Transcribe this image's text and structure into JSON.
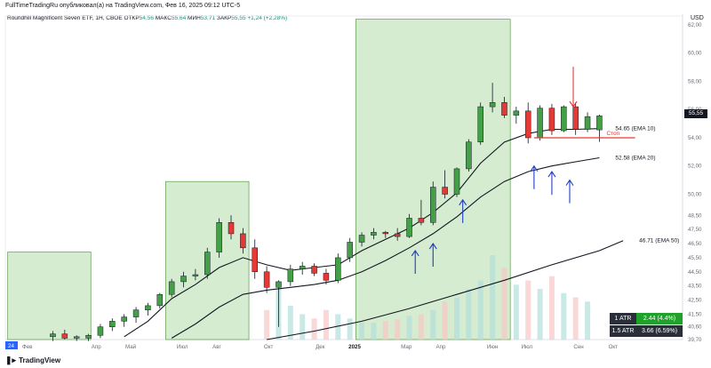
{
  "header": {
    "text": "FullTimeTradingRu опубликовал(а) на TradingView.com, Фев 16, 2025 09:12 UTC-5"
  },
  "symbol_line": {
    "name": "Roundhill Magnificent Seven ETF, 1Н, CBOE",
    "open_label": "ОТКР",
    "open": "54,56",
    "high_label": "МАКС",
    "high": "55,64",
    "low_label": "МИН",
    "low": "53,71",
    "close_label": "ЗАКР",
    "close": "55,55",
    "change": "+1,24 (+2,28%)"
  },
  "currency": "USD",
  "last_price": "55,55",
  "atr": [
    {
      "label": "1 ATR",
      "value": "2.44 (4.4%)",
      "color": "#1fa12b"
    },
    {
      "label": "1.5 ATR",
      "value": "3.66 (6.59%)",
      "color": "#2a2e39"
    }
  ],
  "footer": {
    "brand": "TradingView"
  },
  "colors": {
    "up": "#43a047",
    "down": "#e53935",
    "zone": "#c8e6c0",
    "zone_border": "#5b9b4a",
    "arrow_blue": "#1f3fbf",
    "arrow_red": "#e53935",
    "stop_line": "#e53935"
  },
  "chart_data": {
    "type": "candlestick",
    "price_axis": {
      "min": 39.7,
      "max": 62.0,
      "ticks": [
        "62,00",
        "60,00",
        "58,00",
        "56,00",
        "54,00",
        "52,00",
        "50,00",
        "48,50",
        "47,50",
        "46,50",
        "45,50",
        "44,50",
        "43,50",
        "42,50",
        "41,50",
        "40,60",
        "39,70"
      ],
      "tick_values": [
        62.0,
        60.0,
        58.0,
        56.0,
        54.0,
        52.0,
        50.0,
        48.5,
        47.5,
        46.5,
        45.5,
        44.5,
        43.5,
        42.5,
        41.5,
        40.6,
        39.7
      ]
    },
    "time_axis": {
      "ticks": [
        "24",
        "Фев",
        "Апр",
        "Май",
        "Июл",
        "Авг",
        "Окт",
        "Дек",
        "2025",
        "Мар",
        "Апр",
        "Июн",
        "Июл",
        "Сен",
        "Окт"
      ],
      "tick_pos": [
        0,
        1,
        5,
        7,
        10,
        12,
        15,
        18,
        20,
        23,
        25,
        28,
        30,
        33,
        35
      ]
    },
    "candles": [
      {
        "t": 4,
        "o": 39.9,
        "h": 40.3,
        "l": 39.6,
        "c": 40.1
      },
      {
        "t": 5,
        "o": 40.1,
        "h": 40.4,
        "l": 39.7,
        "c": 39.8
      },
      {
        "t": 6,
        "o": 39.8,
        "h": 40.0,
        "l": 39.6,
        "c": 39.9
      },
      {
        "t": 7,
        "o": 39.8,
        "h": 40.1,
        "l": 39.6,
        "c": 40.0
      },
      {
        "t": 8,
        "o": 40.0,
        "h": 40.8,
        "l": 39.8,
        "c": 40.6
      },
      {
        "t": 9,
        "o": 40.6,
        "h": 41.2,
        "l": 40.3,
        "c": 41.0
      },
      {
        "t": 10,
        "o": 41.0,
        "h": 41.5,
        "l": 40.6,
        "c": 41.3
      },
      {
        "t": 11,
        "o": 41.3,
        "h": 42.0,
        "l": 40.9,
        "c": 41.8
      },
      {
        "t": 12,
        "o": 41.8,
        "h": 42.3,
        "l": 41.4,
        "c": 42.1
      },
      {
        "t": 13,
        "o": 42.1,
        "h": 43.0,
        "l": 41.9,
        "c": 42.9
      },
      {
        "t": 14,
        "o": 42.9,
        "h": 44.0,
        "l": 42.7,
        "c": 43.8
      },
      {
        "t": 15,
        "o": 43.8,
        "h": 44.5,
        "l": 43.4,
        "c": 44.2
      },
      {
        "t": 16,
        "o": 44.2,
        "h": 44.7,
        "l": 43.9,
        "c": 44.3
      },
      {
        "t": 17,
        "o": 44.3,
        "h": 46.2,
        "l": 44.0,
        "c": 45.9
      },
      {
        "t": 18,
        "o": 45.9,
        "h": 48.3,
        "l": 45.5,
        "c": 48.0
      },
      {
        "t": 19,
        "o": 48.0,
        "h": 48.5,
        "l": 46.8,
        "c": 47.2
      },
      {
        "t": 20,
        "o": 47.2,
        "h": 47.6,
        "l": 45.8,
        "c": 46.2
      },
      {
        "t": 21,
        "o": 46.2,
        "h": 46.8,
        "l": 44.0,
        "c": 44.5
      },
      {
        "t": 22,
        "o": 44.5,
        "h": 44.9,
        "l": 43.0,
        "c": 43.4
      },
      {
        "t": 23,
        "o": 43.4,
        "h": 43.9,
        "l": 40.6,
        "c": 43.8
      },
      {
        "t": 24,
        "o": 43.8,
        "h": 45.0,
        "l": 43.5,
        "c": 44.7
      },
      {
        "t": 25,
        "o": 44.7,
        "h": 45.2,
        "l": 44.3,
        "c": 44.9
      },
      {
        "t": 26,
        "o": 44.9,
        "h": 45.1,
        "l": 44.2,
        "c": 44.4
      },
      {
        "t": 27,
        "o": 44.4,
        "h": 44.7,
        "l": 43.6,
        "c": 43.9
      },
      {
        "t": 28,
        "o": 43.9,
        "h": 45.8,
        "l": 43.7,
        "c": 45.5
      },
      {
        "t": 29,
        "o": 45.5,
        "h": 46.9,
        "l": 45.2,
        "c": 46.6
      },
      {
        "t": 30,
        "o": 46.6,
        "h": 47.3,
        "l": 46.3,
        "c": 47.1
      },
      {
        "t": 31,
        "o": 47.1,
        "h": 47.6,
        "l": 46.8,
        "c": 47.3
      },
      {
        "t": 32,
        "o": 47.3,
        "h": 47.4,
        "l": 46.9,
        "c": 47.2
      },
      {
        "t": 33,
        "o": 47.2,
        "h": 47.6,
        "l": 46.7,
        "c": 47.0
      },
      {
        "t": 34,
        "o": 47.0,
        "h": 48.6,
        "l": 46.9,
        "c": 48.3
      },
      {
        "t": 35,
        "o": 48.3,
        "h": 49.6,
        "l": 47.8,
        "c": 48.0
      },
      {
        "t": 36,
        "o": 48.0,
        "h": 50.9,
        "l": 47.8,
        "c": 50.5
      },
      {
        "t": 37,
        "o": 50.5,
        "h": 51.7,
        "l": 49.7,
        "c": 50.0
      },
      {
        "t": 38,
        "o": 50.0,
        "h": 51.9,
        "l": 49.8,
        "c": 51.8
      },
      {
        "t": 39,
        "o": 51.8,
        "h": 53.9,
        "l": 51.6,
        "c": 53.7
      },
      {
        "t": 40,
        "o": 53.7,
        "h": 56.5,
        "l": 53.5,
        "c": 56.2
      },
      {
        "t": 41,
        "o": 56.2,
        "h": 57.9,
        "l": 55.8,
        "c": 56.5
      },
      {
        "t": 42,
        "o": 56.5,
        "h": 56.9,
        "l": 55.4,
        "c": 55.6
      },
      {
        "t": 43,
        "o": 55.6,
        "h": 56.2,
        "l": 55.0,
        "c": 55.9
      },
      {
        "t": 44,
        "o": 55.9,
        "h": 56.5,
        "l": 53.6,
        "c": 54.0
      },
      {
        "t": 45,
        "o": 54.0,
        "h": 56.3,
        "l": 53.8,
        "c": 56.1
      },
      {
        "t": 46,
        "o": 56.1,
        "h": 56.4,
        "l": 54.2,
        "c": 54.5
      },
      {
        "t": 47,
        "o": 54.5,
        "h": 56.3,
        "l": 54.4,
        "c": 56.2
      },
      {
        "t": 48,
        "o": 56.2,
        "h": 56.5,
        "l": 54.2,
        "c": 54.6
      },
      {
        "t": 49,
        "o": 54.6,
        "h": 55.8,
        "l": 54.4,
        "c": 55.5
      },
      {
        "t": 50,
        "o": 54.56,
        "h": 55.64,
        "l": 53.71,
        "c": 55.55
      }
    ],
    "ema": [
      {
        "label": "54.65 (EMA 10)",
        "value_label": "54.65 (EMA 10)",
        "points": [
          [
            10,
            39.9
          ],
          [
            12,
            41.0
          ],
          [
            14,
            42.6
          ],
          [
            16,
            43.6
          ],
          [
            18,
            44.8
          ],
          [
            20,
            45.5
          ],
          [
            22,
            45.0
          ],
          [
            24,
            44.6
          ],
          [
            26,
            44.8
          ],
          [
            28,
            45.0
          ],
          [
            30,
            46.0
          ],
          [
            32,
            46.8
          ],
          [
            34,
            47.6
          ],
          [
            36,
            48.7
          ],
          [
            38,
            50.1
          ],
          [
            40,
            52.2
          ],
          [
            42,
            53.7
          ],
          [
            44,
            54.3
          ],
          [
            46,
            54.6
          ],
          [
            48,
            54.6
          ],
          [
            50,
            54.65
          ]
        ]
      },
      {
        "label": "52.58 (EMA 20)",
        "value_label": "52.58 (EMA 20)",
        "points": [
          [
            14,
            39.8
          ],
          [
            16,
            40.8
          ],
          [
            18,
            42.0
          ],
          [
            20,
            42.9
          ],
          [
            22,
            43.2
          ],
          [
            24,
            43.4
          ],
          [
            26,
            43.6
          ],
          [
            28,
            43.9
          ],
          [
            30,
            44.5
          ],
          [
            32,
            45.3
          ],
          [
            34,
            46.2
          ],
          [
            36,
            47.2
          ],
          [
            38,
            48.4
          ],
          [
            40,
            49.8
          ],
          [
            42,
            50.9
          ],
          [
            44,
            51.6
          ],
          [
            46,
            52.0
          ],
          [
            48,
            52.3
          ],
          [
            50,
            52.58
          ]
        ]
      },
      {
        "label": "46.71 (EMA 50)",
        "value_label": "46.71 (EMA 50)",
        "points": [
          [
            22,
            39.7
          ],
          [
            26,
            40.3
          ],
          [
            30,
            41.0
          ],
          [
            34,
            41.9
          ],
          [
            38,
            42.9
          ],
          [
            42,
            43.9
          ],
          [
            46,
            45.0
          ],
          [
            50,
            46.0
          ],
          [
            52,
            46.71
          ]
        ]
      }
    ],
    "stop_level": {
      "label": "Стоп",
      "value": 54.0
    },
    "zones": [
      {
        "t_start": 0.2,
        "t_end": 7.2,
        "top": 45.9
      },
      {
        "t_start": 13.5,
        "t_end": 20.5,
        "top": 50.9
      },
      {
        "t_start": 29.5,
        "t_end": 42.5,
        "top": 62.4
      }
    ],
    "volume": [
      {
        "t": 22,
        "v": 0.35
      },
      {
        "t": 23,
        "v": 0.6
      },
      {
        "t": 24,
        "v": 0.4
      },
      {
        "t": 25,
        "v": 0.3
      },
      {
        "t": 26,
        "v": 0.25
      },
      {
        "t": 27,
        "v": 0.35
      },
      {
        "t": 28,
        "v": 0.3
      },
      {
        "t": 29,
        "v": 0.25
      },
      {
        "t": 30,
        "v": 0.2
      },
      {
        "t": 31,
        "v": 0.2
      },
      {
        "t": 32,
        "v": 0.22
      },
      {
        "t": 33,
        "v": 0.24
      },
      {
        "t": 34,
        "v": 0.28
      },
      {
        "t": 35,
        "v": 0.3
      },
      {
        "t": 36,
        "v": 0.35
      },
      {
        "t": 37,
        "v": 0.45
      },
      {
        "t": 38,
        "v": 0.5
      },
      {
        "t": 39,
        "v": 0.6
      },
      {
        "t": 40,
        "v": 0.7
      },
      {
        "t": 41,
        "v": 1.0
      },
      {
        "t": 42,
        "v": 0.85
      },
      {
        "t": 43,
        "v": 0.65
      },
      {
        "t": 44,
        "v": 0.7
      },
      {
        "t": 45,
        "v": 0.6
      },
      {
        "t": 46,
        "v": 0.75
      },
      {
        "t": 47,
        "v": 0.55
      },
      {
        "t": 48,
        "v": 0.5
      },
      {
        "t": 49,
        "v": 0.45
      }
    ],
    "arrows_up": [
      {
        "t": 34.5,
        "price": 46.0
      },
      {
        "t": 36.0,
        "price": 46.5
      },
      {
        "t": 38.5,
        "price": 49.6
      },
      {
        "t": 44.5,
        "price": 52.0
      },
      {
        "t": 46.0,
        "price": 51.6
      },
      {
        "t": 47.5,
        "price": 51.0
      }
    ],
    "arrow_down": {
      "t": 47.8,
      "price": 56.2
    }
  }
}
